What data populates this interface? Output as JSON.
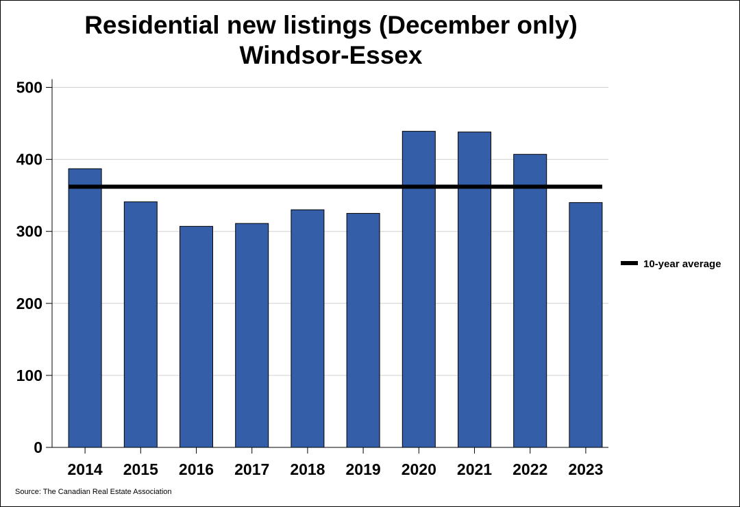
{
  "chart_data": {
    "type": "bar",
    "title": [
      "Residential new listings (December only)",
      "Windsor-Essex"
    ],
    "categories": [
      "2014",
      "2015",
      "2016",
      "2017",
      "2018",
      "2019",
      "2020",
      "2021",
      "2022",
      "2023"
    ],
    "series": [
      {
        "values": [
          387,
          341,
          307,
          311,
          330,
          325,
          439,
          438,
          407,
          340
        ]
      }
    ],
    "reference_line": {
      "name": "10-year average",
      "value": 362
    },
    "ylim": [
      0,
      500
    ],
    "yticks": [
      0,
      100,
      200,
      300,
      400,
      500
    ],
    "grid": true,
    "legend_position": "right",
    "colors": {
      "bar": "#345ea8",
      "average": "#000000",
      "grid": "#d0d0d0"
    }
  },
  "source": "Source: The Canadian Real Estate Association"
}
